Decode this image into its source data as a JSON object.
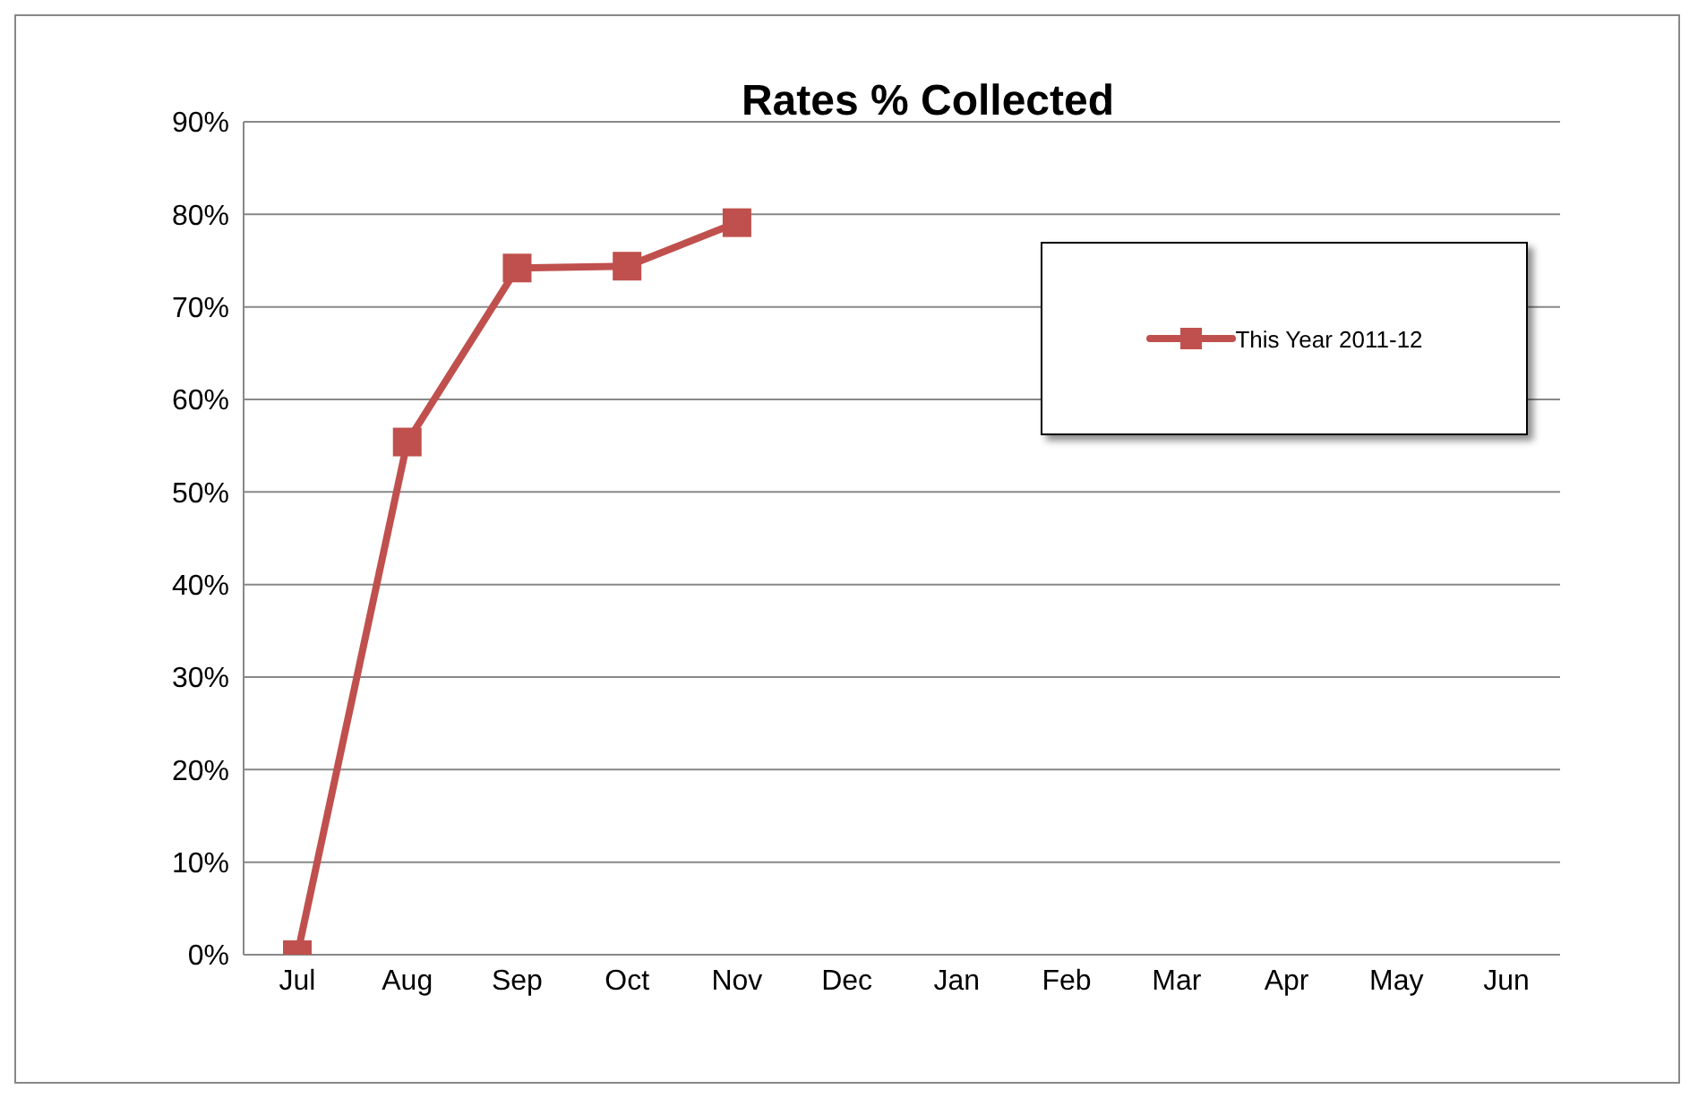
{
  "chart_data": {
    "type": "line",
    "title": "Rates % Collected",
    "categories": [
      "Jul",
      "Aug",
      "Sep",
      "Oct",
      "Nov",
      "Dec",
      "Jan",
      "Feb",
      "Mar",
      "Apr",
      "May",
      "Jun"
    ],
    "series": [
      {
        "name": "This Year 2011-12",
        "color": "#c0504d",
        "values": [
          0,
          55.4,
          74.2,
          74.4,
          79.1,
          null,
          null,
          null,
          null,
          null,
          null,
          null
        ]
      }
    ],
    "ylim": [
      0,
      90
    ],
    "yticks": [
      {
        "value": 0,
        "label": "0%"
      },
      {
        "value": 10,
        "label": "10%"
      },
      {
        "value": 20,
        "label": "20%"
      },
      {
        "value": 30,
        "label": "30%"
      },
      {
        "value": 40,
        "label": "40%"
      },
      {
        "value": 50,
        "label": "50%"
      },
      {
        "value": 60,
        "label": "60%"
      },
      {
        "value": 70,
        "label": "70%"
      },
      {
        "value": 80,
        "label": "80%"
      },
      {
        "value": 90,
        "label": "90%"
      }
    ],
    "grid": "y",
    "legend": "top right",
    "marker": "square",
    "line_style": "solid"
  }
}
